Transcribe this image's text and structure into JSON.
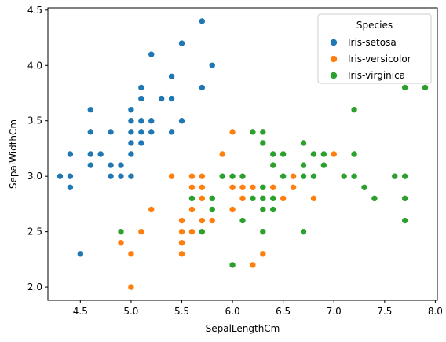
{
  "chart_data": {
    "type": "scatter",
    "xlabel": "SepalLengthCm",
    "ylabel": "SepalWidthCm",
    "xlim": [
      4.18,
      8.02
    ],
    "ylim": [
      1.88,
      4.52
    ],
    "xticks": [
      "4.5",
      "5.0",
      "5.5",
      "6.0",
      "6.5",
      "7.0",
      "7.5",
      "8.0"
    ],
    "yticks": [
      "2.0",
      "2.5",
      "3.0",
      "3.5",
      "4.0",
      "4.5"
    ],
    "grid": false,
    "legend": {
      "title": "Species",
      "placement": "top-right"
    },
    "series": [
      {
        "name": "Iris-setosa",
        "color": "#1f77b4",
        "points": [
          [
            5.1,
            3.5
          ],
          [
            4.9,
            3.0
          ],
          [
            4.7,
            3.2
          ],
          [
            4.6,
            3.1
          ],
          [
            5.0,
            3.6
          ],
          [
            5.4,
            3.9
          ],
          [
            4.6,
            3.4
          ],
          [
            5.0,
            3.4
          ],
          [
            4.4,
            2.9
          ],
          [
            4.9,
            3.1
          ],
          [
            5.4,
            3.7
          ],
          [
            4.8,
            3.4
          ],
          [
            4.8,
            3.0
          ],
          [
            4.3,
            3.0
          ],
          [
            5.8,
            4.0
          ],
          [
            5.7,
            4.4
          ],
          [
            5.4,
            3.9
          ],
          [
            5.1,
            3.5
          ],
          [
            5.7,
            3.8
          ],
          [
            5.1,
            3.8
          ],
          [
            5.4,
            3.4
          ],
          [
            5.1,
            3.7
          ],
          [
            4.6,
            3.6
          ],
          [
            5.1,
            3.3
          ],
          [
            4.8,
            3.4
          ],
          [
            5.0,
            3.0
          ],
          [
            5.0,
            3.4
          ],
          [
            5.2,
            3.5
          ],
          [
            5.2,
            3.4
          ],
          [
            4.7,
            3.2
          ],
          [
            4.8,
            3.1
          ],
          [
            5.4,
            3.4
          ],
          [
            5.2,
            4.1
          ],
          [
            5.5,
            4.2
          ],
          [
            4.9,
            3.1
          ],
          [
            5.0,
            3.2
          ],
          [
            5.5,
            3.5
          ],
          [
            4.9,
            3.1
          ],
          [
            4.4,
            3.0
          ],
          [
            5.1,
            3.4
          ],
          [
            5.0,
            3.5
          ],
          [
            4.5,
            2.3
          ],
          [
            4.4,
            3.2
          ],
          [
            5.0,
            3.5
          ],
          [
            5.1,
            3.8
          ],
          [
            4.8,
            3.0
          ],
          [
            5.1,
            3.8
          ],
          [
            4.6,
            3.2
          ],
          [
            5.3,
            3.7
          ],
          [
            5.0,
            3.3
          ]
        ]
      },
      {
        "name": "Iris-versicolor",
        "color": "#ff7f0e",
        "points": [
          [
            7.0,
            3.2
          ],
          [
            6.4,
            3.2
          ],
          [
            6.9,
            3.1
          ],
          [
            5.5,
            2.3
          ],
          [
            6.5,
            2.8
          ],
          [
            5.7,
            2.8
          ],
          [
            6.3,
            3.3
          ],
          [
            4.9,
            2.4
          ],
          [
            6.6,
            2.9
          ],
          [
            5.2,
            2.7
          ],
          [
            5.0,
            2.0
          ],
          [
            5.9,
            3.0
          ],
          [
            6.0,
            2.2
          ],
          [
            6.1,
            2.9
          ],
          [
            5.6,
            2.9
          ],
          [
            6.7,
            3.1
          ],
          [
            5.6,
            3.0
          ],
          [
            5.8,
            2.7
          ],
          [
            6.2,
            2.2
          ],
          [
            5.6,
            2.5
          ],
          [
            5.9,
            3.2
          ],
          [
            6.1,
            2.8
          ],
          [
            6.3,
            2.5
          ],
          [
            6.1,
            2.8
          ],
          [
            6.4,
            2.9
          ],
          [
            6.6,
            3.0
          ],
          [
            6.8,
            2.8
          ],
          [
            6.7,
            3.0
          ],
          [
            6.0,
            2.9
          ],
          [
            5.7,
            2.6
          ],
          [
            5.5,
            2.4
          ],
          [
            5.5,
            2.4
          ],
          [
            5.8,
            2.7
          ],
          [
            6.0,
            2.7
          ],
          [
            5.4,
            3.0
          ],
          [
            6.0,
            3.4
          ],
          [
            6.7,
            3.1
          ],
          [
            6.3,
            2.3
          ],
          [
            5.6,
            3.0
          ],
          [
            5.5,
            2.5
          ],
          [
            5.5,
            2.6
          ],
          [
            6.1,
            3.0
          ],
          [
            5.8,
            2.6
          ],
          [
            5.0,
            2.3
          ],
          [
            5.6,
            2.7
          ],
          [
            5.7,
            3.0
          ],
          [
            5.7,
            2.9
          ],
          [
            6.2,
            2.9
          ],
          [
            5.1,
            2.5
          ],
          [
            5.7,
            2.8
          ]
        ]
      },
      {
        "name": "Iris-virginica",
        "color": "#2ca02c",
        "points": [
          [
            6.3,
            3.3
          ],
          [
            5.8,
            2.7
          ],
          [
            7.1,
            3.0
          ],
          [
            6.3,
            2.9
          ],
          [
            6.5,
            3.0
          ],
          [
            7.6,
            3.0
          ],
          [
            4.9,
            2.5
          ],
          [
            7.3,
            2.9
          ],
          [
            6.7,
            2.5
          ],
          [
            7.2,
            3.6
          ],
          [
            6.5,
            3.2
          ],
          [
            6.4,
            2.7
          ],
          [
            6.8,
            3.0
          ],
          [
            5.7,
            2.5
          ],
          [
            5.8,
            2.8
          ],
          [
            6.4,
            3.2
          ],
          [
            6.5,
            3.0
          ],
          [
            7.7,
            3.8
          ],
          [
            7.7,
            2.6
          ],
          [
            6.0,
            2.2
          ],
          [
            6.9,
            3.2
          ],
          [
            5.6,
            2.8
          ],
          [
            7.7,
            2.8
          ],
          [
            6.3,
            2.7
          ],
          [
            6.7,
            3.3
          ],
          [
            7.2,
            3.2
          ],
          [
            6.2,
            2.8
          ],
          [
            6.1,
            3.0
          ],
          [
            6.4,
            2.8
          ],
          [
            7.2,
            3.0
          ],
          [
            7.4,
            2.8
          ],
          [
            7.9,
            3.8
          ],
          [
            6.4,
            2.8
          ],
          [
            6.3,
            2.8
          ],
          [
            6.1,
            2.6
          ],
          [
            7.7,
            3.0
          ],
          [
            6.3,
            3.4
          ],
          [
            6.4,
            3.1
          ],
          [
            6.0,
            3.0
          ],
          [
            6.9,
            3.1
          ],
          [
            6.7,
            3.1
          ],
          [
            6.9,
            3.1
          ],
          [
            5.8,
            2.7
          ],
          [
            6.8,
            3.2
          ],
          [
            6.7,
            3.3
          ],
          [
            6.7,
            3.0
          ],
          [
            6.3,
            2.5
          ],
          [
            6.5,
            3.0
          ],
          [
            6.2,
            3.4
          ],
          [
            5.9,
            3.0
          ]
        ]
      }
    ]
  }
}
